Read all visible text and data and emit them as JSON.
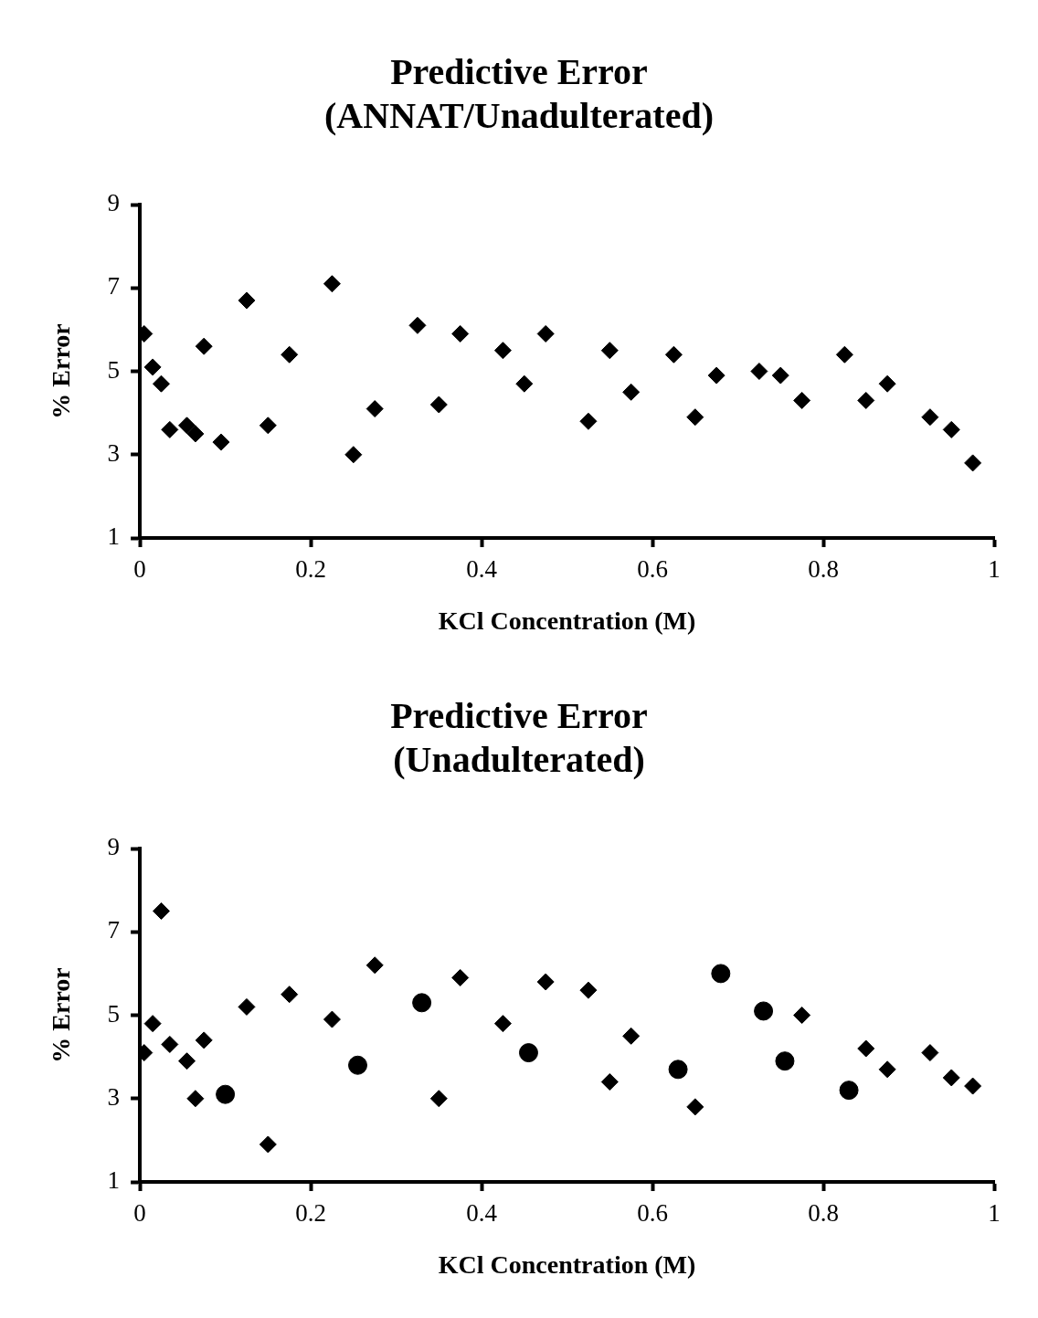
{
  "chart_data": [
    {
      "type": "scatter",
      "title": "Predictive Error\n(ANNAT/Unadulterated)",
      "xlabel": "KCl Concentration (M)",
      "ylabel": "% Error",
      "xlim": [
        0,
        1
      ],
      "xticks": [
        0,
        0.2,
        0.4,
        0.6,
        0.8,
        1
      ],
      "ylim": [
        1,
        9
      ],
      "yticks": [
        1,
        3,
        5,
        7,
        9
      ],
      "marker": "diamond",
      "series": [
        {
          "color": "#000000",
          "x": [
            0.005,
            0.015,
            0.025,
            0.035,
            0.055,
            0.065,
            0.075,
            0.095,
            0.125,
            0.15,
            0.175,
            0.225,
            0.25,
            0.275,
            0.325,
            0.35,
            0.375,
            0.425,
            0.45,
            0.475,
            0.525,
            0.55,
            0.575,
            0.625,
            0.65,
            0.675,
            0.725,
            0.75,
            0.775,
            0.825,
            0.85,
            0.875,
            0.925,
            0.95,
            0.975
          ],
          "values": [
            5.9,
            5.1,
            4.7,
            3.6,
            3.7,
            3.5,
            5.6,
            3.3,
            6.7,
            3.7,
            5.4,
            7.1,
            3.0,
            4.1,
            6.1,
            4.2,
            5.9,
            5.5,
            4.7,
            5.9,
            3.8,
            5.5,
            4.5,
            5.4,
            3.9,
            4.9,
            5.0,
            4.9,
            4.3,
            5.4,
            4.3,
            4.7,
            3.9,
            3.6,
            2.8
          ]
        }
      ]
    },
    {
      "type": "scatter",
      "title": "Predictive Error\n(Unadulterated)",
      "xlabel": "KCl Concentration (M)",
      "ylabel": "% Error",
      "xlim": [
        0,
        1
      ],
      "xticks": [
        0,
        0.2,
        0.4,
        0.6,
        0.8,
        1
      ],
      "ylim": [
        1,
        9
      ],
      "yticks": [
        1,
        3,
        5,
        7,
        9
      ],
      "series": [
        {
          "color": "#000000",
          "marker": "diamond",
          "x": [
            0.005,
            0.015,
            0.025,
            0.035,
            0.055,
            0.065,
            0.075,
            0.125,
            0.15,
            0.175,
            0.225,
            0.275,
            0.35,
            0.375,
            0.425,
            0.475,
            0.525,
            0.55,
            0.575,
            0.65,
            0.775,
            0.85,
            0.875,
            0.925,
            0.95,
            0.975
          ],
          "values": [
            4.1,
            4.8,
            7.5,
            4.3,
            3.9,
            3.0,
            4.4,
            5.2,
            1.9,
            5.5,
            4.9,
            6.2,
            3.0,
            5.9,
            4.8,
            5.8,
            5.6,
            3.4,
            4.5,
            2.8,
            5.0,
            4.2,
            3.7,
            4.1,
            3.5,
            3.3
          ]
        },
        {
          "color": "#000000",
          "marker": "circle",
          "x": [
            0.1,
            0.255,
            0.33,
            0.455,
            0.63,
            0.68,
            0.73,
            0.755,
            0.83
          ],
          "values": [
            3.1,
            3.8,
            5.3,
            4.1,
            3.7,
            6.0,
            5.1,
            3.9,
            3.2
          ]
        }
      ]
    }
  ]
}
